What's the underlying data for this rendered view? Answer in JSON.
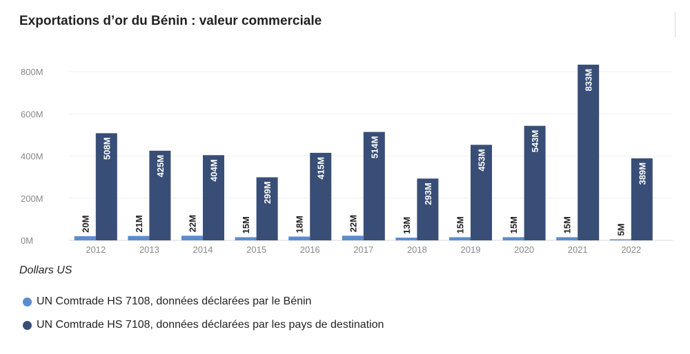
{
  "chart_data": {
    "type": "bar",
    "title": "Exportations d’or du Bénin : valeur commerciale",
    "unit_label": "Dollars US",
    "categories": [
      "2012",
      "2013",
      "2014",
      "2015",
      "2016",
      "2017",
      "2018",
      "2019",
      "2020",
      "2021",
      "2022"
    ],
    "y_ticks": [
      "0M",
      "200M",
      "400M",
      "600M",
      "800M"
    ],
    "ylim": [
      0,
      800
    ],
    "grid": true,
    "legend_position": "bottom-left",
    "series": [
      {
        "name": "UN Comtrade HS 7108, données déclarées par le Bénin",
        "color": "#5b8ccf",
        "values": [
          20,
          21,
          22,
          15,
          18,
          22,
          13,
          15,
          15,
          15,
          5
        ],
        "labels": [
          "20M",
          "21M",
          "22M",
          "15M",
          "18M",
          "22M",
          "13M",
          "15M",
          "15M",
          "15M",
          "5M"
        ]
      },
      {
        "name": "UN Comtrade HS 7108, données déclarées par les pays de destination",
        "color": "#384e77",
        "values": [
          508,
          425,
          404,
          299,
          415,
          514,
          293,
          453,
          543,
          833,
          389
        ],
        "labels": [
          "508M",
          "425M",
          "404M",
          "299M",
          "415M",
          "514M",
          "293M",
          "453M",
          "543M",
          "833M",
          "389M"
        ]
      }
    ]
  }
}
